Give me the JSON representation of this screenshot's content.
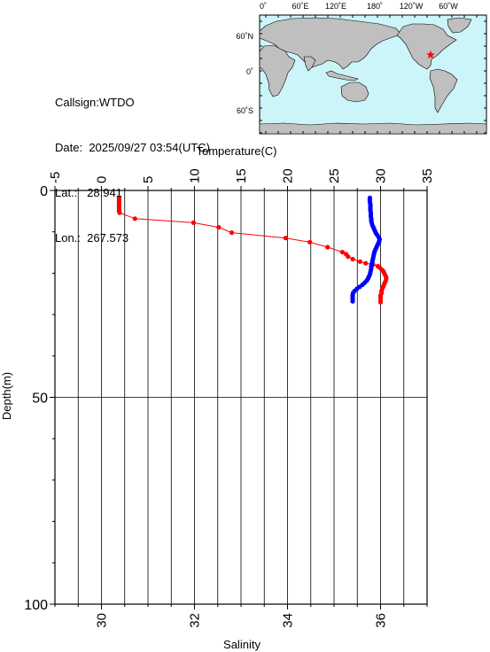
{
  "station": {
    "callsign_label": "Callsign:",
    "callsign": "WTDO",
    "date_label": "Date:",
    "date": "2025/09/27 03:54(UTC)",
    "lat_label": "Lat.:",
    "lat": "28.941",
    "lon_label": "Lon.:",
    "lon": "267.573"
  },
  "map": {
    "top_labels": [
      "0˚",
      "60˚E",
      "120˚E",
      "180˚",
      "120˚W",
      "60˚W"
    ],
    "left_labels": [
      "60˚N",
      "0˚",
      "60˚S"
    ],
    "ocean_color": "#ccf5fa",
    "land_color": "#bfbfbf",
    "marker_color": "#ff0000",
    "marker_icon": "red-star"
  },
  "chart_data": {
    "type": "line",
    "temperature_axis": {
      "label": "Temperature(C)",
      "range": [
        -5,
        35
      ],
      "ticks": [
        "-5",
        "0",
        "5",
        "10",
        "15",
        "20",
        "25",
        "30",
        "35"
      ]
    },
    "salinity_axis": {
      "label": "Salinity",
      "range": [
        29,
        37
      ],
      "ticks": [
        "30",
        "32",
        "34",
        "36"
      ]
    },
    "depth_axis": {
      "label": "Depth(m)",
      "range": [
        0,
        100
      ],
      "inverted": true,
      "ticks": [
        "0",
        "50",
        "100"
      ]
    },
    "grid": true,
    "series": [
      {
        "quantity": "temperature",
        "color": "#ff0000",
        "points": [
          {
            "depth": 1.8,
            "value": 1.9
          },
          {
            "depth": 2.2,
            "value": 1.9
          },
          {
            "depth": 2.6,
            "value": 1.9
          },
          {
            "depth": 3.0,
            "value": 1.9
          },
          {
            "depth": 3.4,
            "value": 1.9
          },
          {
            "depth": 3.8,
            "value": 1.9
          },
          {
            "depth": 4.2,
            "value": 1.9
          },
          {
            "depth": 4.6,
            "value": 1.9
          },
          {
            "depth": 5.0,
            "value": 1.9
          },
          {
            "depth": 5.4,
            "value": 1.95
          },
          {
            "depth": 6.8,
            "value": 3.6
          },
          {
            "depth": 7.8,
            "value": 9.9
          },
          {
            "depth": 8.9,
            "value": 12.6
          },
          {
            "depth": 10.2,
            "value": 14.0
          },
          {
            "depth": 11.5,
            "value": 19.8
          },
          {
            "depth": 12.5,
            "value": 22.4
          },
          {
            "depth": 13.7,
            "value": 24.3
          },
          {
            "depth": 14.9,
            "value": 25.9
          },
          {
            "depth": 15.4,
            "value": 26.3
          },
          {
            "depth": 16.0,
            "value": 26.5
          },
          {
            "depth": 16.6,
            "value": 27.0
          },
          {
            "depth": 17.2,
            "value": 27.8
          },
          {
            "depth": 17.6,
            "value": 28.4
          },
          {
            "depth": 17.9,
            "value": 29.2
          },
          {
            "depth": 18.3,
            "value": 29.7
          },
          {
            "depth": 18.6,
            "value": 29.9
          },
          {
            "depth": 19.1,
            "value": 30.1
          },
          {
            "depth": 19.5,
            "value": 30.3
          },
          {
            "depth": 20.0,
            "value": 30.4
          },
          {
            "depth": 20.5,
            "value": 30.5
          },
          {
            "depth": 21.0,
            "value": 30.6
          },
          {
            "depth": 21.5,
            "value": 30.6
          },
          {
            "depth": 22.1,
            "value": 30.5
          },
          {
            "depth": 22.6,
            "value": 30.4
          },
          {
            "depth": 23.2,
            "value": 30.3
          },
          {
            "depth": 23.7,
            "value": 30.2
          },
          {
            "depth": 24.3,
            "value": 30.1
          },
          {
            "depth": 24.8,
            "value": 30.1
          },
          {
            "depth": 25.4,
            "value": 30.0
          },
          {
            "depth": 25.9,
            "value": 30.0
          },
          {
            "depth": 26.5,
            "value": 30.0
          },
          {
            "depth": 27.0,
            "value": 30.0
          }
        ]
      },
      {
        "quantity": "salinity",
        "color": "#0000ff",
        "points": [
          {
            "depth": 1.8,
            "value": 35.77
          },
          {
            "depth": 2.3,
            "value": 35.77
          },
          {
            "depth": 2.8,
            "value": 35.77
          },
          {
            "depth": 3.3,
            "value": 35.78
          },
          {
            "depth": 3.8,
            "value": 35.78
          },
          {
            "depth": 4.3,
            "value": 35.78
          },
          {
            "depth": 4.8,
            "value": 35.78
          },
          {
            "depth": 5.3,
            "value": 35.79
          },
          {
            "depth": 5.8,
            "value": 35.79
          },
          {
            "depth": 6.3,
            "value": 35.79
          },
          {
            "depth": 6.8,
            "value": 35.8
          },
          {
            "depth": 7.3,
            "value": 35.8
          },
          {
            "depth": 7.8,
            "value": 35.81
          },
          {
            "depth": 8.3,
            "value": 35.82
          },
          {
            "depth": 8.8,
            "value": 35.84
          },
          {
            "depth": 9.3,
            "value": 35.86
          },
          {
            "depth": 9.8,
            "value": 35.88
          },
          {
            "depth": 10.3,
            "value": 35.9
          },
          {
            "depth": 10.8,
            "value": 35.93
          },
          {
            "depth": 11.3,
            "value": 35.96
          },
          {
            "depth": 11.8,
            "value": 35.98
          },
          {
            "depth": 12.3,
            "value": 35.97
          },
          {
            "depth": 12.8,
            "value": 35.95
          },
          {
            "depth": 13.3,
            "value": 35.93
          },
          {
            "depth": 13.8,
            "value": 35.91
          },
          {
            "depth": 14.3,
            "value": 35.89
          },
          {
            "depth": 14.8,
            "value": 35.87
          },
          {
            "depth": 15.3,
            "value": 35.86
          },
          {
            "depth": 15.8,
            "value": 35.85
          },
          {
            "depth": 16.3,
            "value": 35.84
          },
          {
            "depth": 16.8,
            "value": 35.83
          },
          {
            "depth": 17.3,
            "value": 35.82
          },
          {
            "depth": 17.8,
            "value": 35.81
          },
          {
            "depth": 18.3,
            "value": 35.8
          },
          {
            "depth": 18.8,
            "value": 35.8
          },
          {
            "depth": 19.3,
            "value": 35.79
          },
          {
            "depth": 19.8,
            "value": 35.78
          },
          {
            "depth": 20.3,
            "value": 35.77
          },
          {
            "depth": 20.8,
            "value": 35.75
          },
          {
            "depth": 21.3,
            "value": 35.73
          },
          {
            "depth": 21.8,
            "value": 35.7
          },
          {
            "depth": 22.3,
            "value": 35.66
          },
          {
            "depth": 22.8,
            "value": 35.61
          },
          {
            "depth": 23.3,
            "value": 35.55
          },
          {
            "depth": 23.8,
            "value": 35.49
          },
          {
            "depth": 24.3,
            "value": 35.44
          },
          {
            "depth": 24.8,
            "value": 35.41
          },
          {
            "depth": 25.3,
            "value": 35.4
          },
          {
            "depth": 25.8,
            "value": 35.4
          },
          {
            "depth": 26.3,
            "value": 35.4
          },
          {
            "depth": 26.8,
            "value": 35.4
          }
        ]
      }
    ]
  }
}
